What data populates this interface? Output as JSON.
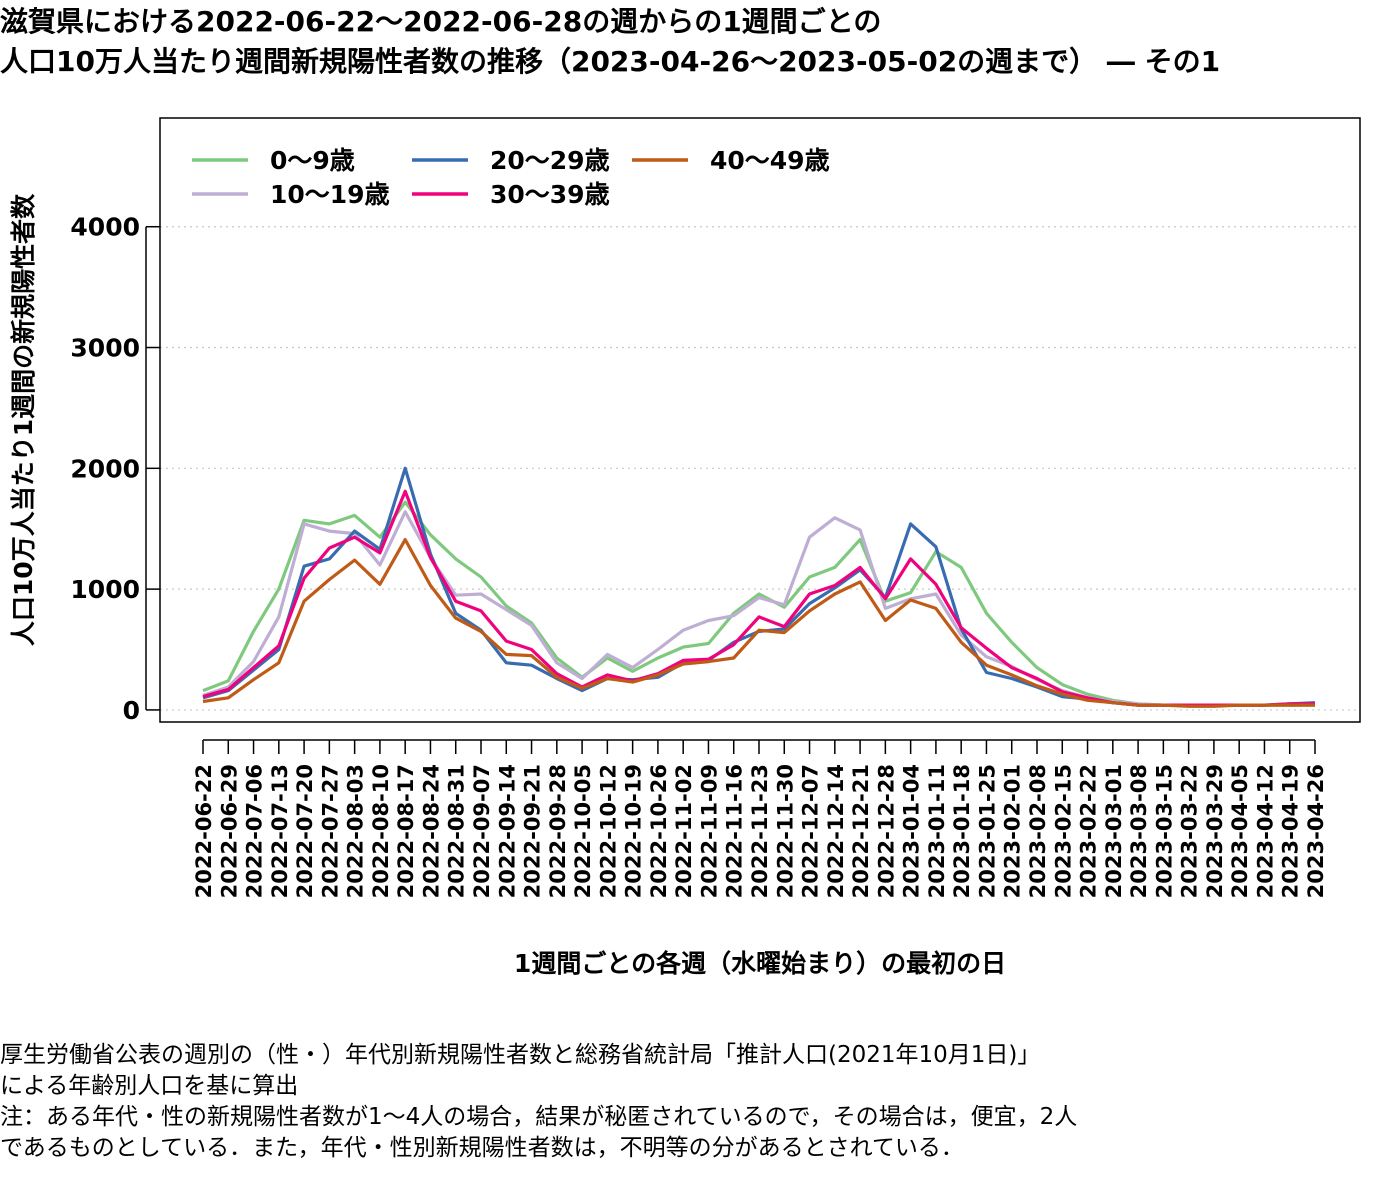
{
  "title_lines": [
    "滋賀県における2022-06-22～2022-06-28の週からの1週間ごとの",
    "人口10万人当たり週間新規陽性者数の推移（2023-04-26～2023-05-02の週まで） ― その1"
  ],
  "notes": [
    "厚生労働省公表の週別の（性・）年代別新規陽性者数と総務省統計局「推計人口(2021年10月1日)」",
    "による年齢別人口を基に算出",
    "注：ある年代・性の新規陽性者数が1～4人の場合，結果が秘匿されているので，その場合は，便宜，2人",
    "であるものとしている．また，年代・性別新規陽性者数は，不明等の分があるとされている．"
  ],
  "chart_data": {
    "type": "line",
    "xlabel": "1週間ごとの各週（水曜始まり）の最初の日",
    "ylabel": "人口10万人当たり1週間の新規陽性者数",
    "ylim": [
      -100,
      4900
    ],
    "yticks": [
      0,
      1000,
      2000,
      3000,
      4000
    ],
    "grid": "horizontal dotted",
    "legend_position": "top-left",
    "categories": [
      "2022-06-22",
      "2022-06-29",
      "2022-07-06",
      "2022-07-13",
      "2022-07-20",
      "2022-07-27",
      "2022-08-03",
      "2022-08-10",
      "2022-08-17",
      "2022-08-24",
      "2022-08-31",
      "2022-09-07",
      "2022-09-14",
      "2022-09-21",
      "2022-09-28",
      "2022-10-05",
      "2022-10-12",
      "2022-10-19",
      "2022-10-26",
      "2022-11-02",
      "2022-11-09",
      "2022-11-16",
      "2022-11-23",
      "2022-11-30",
      "2022-12-07",
      "2022-12-14",
      "2022-12-21",
      "2022-12-28",
      "2023-01-04",
      "2023-01-11",
      "2023-01-18",
      "2023-01-25",
      "2023-02-01",
      "2023-02-08",
      "2023-02-15",
      "2023-02-22",
      "2023-03-01",
      "2023-03-08",
      "2023-03-15",
      "2023-03-22",
      "2023-03-29",
      "2023-04-05",
      "2023-04-12",
      "2023-04-19",
      "2023-04-26"
    ],
    "series": [
      {
        "name": "0～9歳",
        "color": "#7fc97f",
        "values": [
          160,
          240,
          650,
          1000,
          1570,
          1540,
          1610,
          1430,
          1720,
          1450,
          1250,
          1100,
          860,
          720,
          430,
          270,
          430,
          320,
          430,
          520,
          550,
          800,
          960,
          850,
          1100,
          1180,
          1410,
          900,
          970,
          1310,
          1180,
          800,
          560,
          350,
          210,
          130,
          80,
          50,
          40,
          40,
          40,
          40,
          40,
          40,
          40
        ]
      },
      {
        "name": "10～19歳",
        "color": "#beaed4",
        "values": [
          120,
          190,
          400,
          770,
          1540,
          1480,
          1460,
          1200,
          1640,
          1260,
          950,
          960,
          830,
          700,
          390,
          260,
          460,
          350,
          500,
          660,
          740,
          780,
          930,
          870,
          1430,
          1590,
          1490,
          840,
          920,
          960,
          620,
          440,
          360,
          250,
          160,
          100,
          70,
          50,
          40,
          40,
          40,
          40,
          40,
          40,
          50
        ]
      },
      {
        "name": "20～29歳",
        "color": "#386cb0",
        "values": [
          100,
          160,
          330,
          500,
          1190,
          1250,
          1480,
          1330,
          2000,
          1290,
          800,
          660,
          390,
          370,
          260,
          160,
          260,
          250,
          270,
          390,
          410,
          560,
          650,
          670,
          880,
          1010,
          1160,
          930,
          1540,
          1350,
          670,
          310,
          260,
          190,
          110,
          90,
          60,
          40,
          40,
          40,
          40,
          40,
          40,
          50,
          60
        ]
      },
      {
        "name": "30～39歳",
        "color": "#f0027f",
        "values": [
          110,
          170,
          350,
          530,
          1090,
          1340,
          1430,
          1300,
          1810,
          1260,
          900,
          820,
          570,
          500,
          300,
          190,
          290,
          240,
          300,
          410,
          420,
          540,
          770,
          690,
          960,
          1030,
          1180,
          920,
          1250,
          1040,
          680,
          510,
          350,
          260,
          150,
          100,
          60,
          40,
          40,
          40,
          40,
          40,
          40,
          50,
          50
        ]
      },
      {
        "name": "40～49歳",
        "color": "#bf5b17",
        "values": [
          70,
          100,
          250,
          390,
          900,
          1080,
          1240,
          1040,
          1410,
          1030,
          760,
          650,
          460,
          450,
          270,
          180,
          260,
          230,
          290,
          380,
          400,
          430,
          660,
          640,
          820,
          960,
          1060,
          740,
          910,
          840,
          560,
          370,
          290,
          200,
          130,
          80,
          60,
          40,
          40,
          30,
          30,
          40,
          40,
          40,
          40
        ]
      }
    ]
  }
}
